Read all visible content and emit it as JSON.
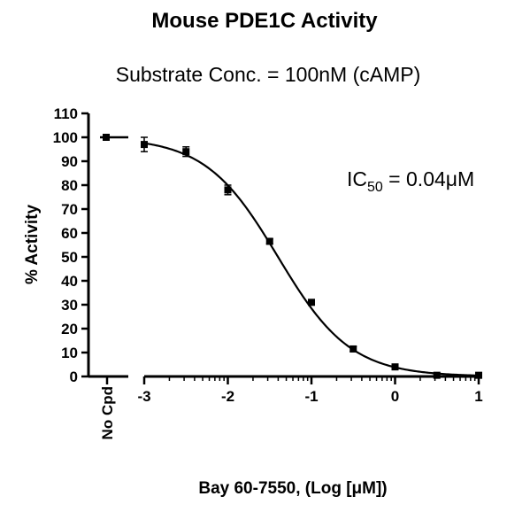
{
  "chart_data": {
    "type": "scatter",
    "title": "Mouse PDE1C Activity",
    "subtitle": "Substrate Conc. = 100nM (cAMP)",
    "xlabel": "Bay 60-7550, (Log [μM])",
    "ylabel": "% Activity",
    "xlim": [
      -3,
      1
    ],
    "ylim": [
      0,
      110
    ],
    "x_ticks": [
      "-3",
      "-2",
      "-1",
      "0",
      "1"
    ],
    "y_ticks": [
      "0",
      "10",
      "20",
      "30",
      "40",
      "50",
      "60",
      "70",
      "80",
      "90",
      "100",
      "110"
    ],
    "control": {
      "label": "No Cpd",
      "value": 100
    },
    "series": [
      {
        "x": [
          -3,
          -2.5,
          -2,
          -1.5,
          -1,
          -0.5,
          0,
          0.5,
          1
        ],
        "y": [
          97,
          94,
          78,
          56.5,
          31,
          11.5,
          4,
          0.5,
          0.5
        ],
        "error": [
          3,
          2,
          2,
          1,
          1,
          1,
          1,
          0.5,
          0.5
        ]
      }
    ],
    "fit": {
      "top": 100,
      "bottom": 0,
      "log_ic50": -1.4,
      "hill": 1
    },
    "annotation": {
      "main": "IC",
      "sub": "50",
      "rest": " = 0.04μM"
    },
    "grid": false,
    "legend": "none",
    "color": "#000000"
  }
}
